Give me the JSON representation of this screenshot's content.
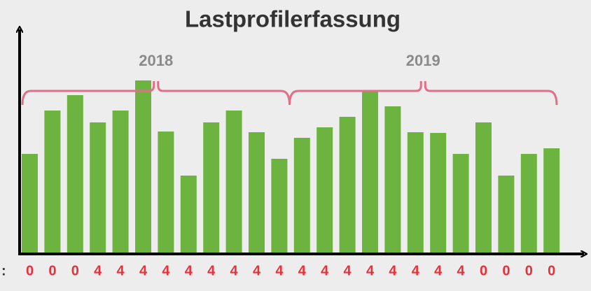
{
  "chart_data": {
    "type": "bar",
    "title": "Lastprofilerfassung",
    "groups": [
      "2018",
      "2019"
    ],
    "values": [
      143,
      205,
      227,
      188,
      205,
      248,
      175,
      112,
      188,
      205,
      174,
      136,
      166,
      181,
      196,
      234,
      211,
      174,
      173,
      143,
      188,
      112,
      143,
      151
    ],
    "color": "#6db33f",
    "row_label": ":",
    "bottom_labels": [
      0,
      0,
      0,
      4,
      4,
      4,
      4,
      4,
      4,
      4,
      4,
      4,
      4,
      4,
      4,
      4,
      4,
      4,
      4,
      4,
      0,
      0,
      0,
      0
    ],
    "bottom_label_color": "#e8303a",
    "group_color": "#e07088"
  }
}
